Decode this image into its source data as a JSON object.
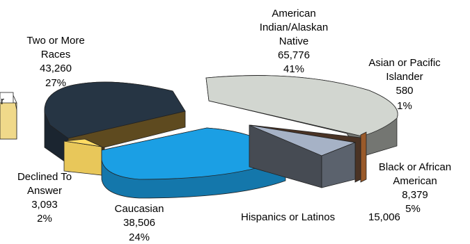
{
  "chart_data": {
    "type": "pie",
    "style": "3d-exploded",
    "slices": [
      {
        "label_lines": [
          "American",
          "Indian/Alaskan",
          "Native"
        ],
        "value": 65776,
        "value_text": "65,776",
        "percent_text": "41%",
        "color": "#d2d6d0"
      },
      {
        "label_lines": [
          "Asian or Pacific",
          "Islander"
        ],
        "value": 580,
        "value_text": "580",
        "percent_text": "1%",
        "color": "#9a5a2a"
      },
      {
        "label_lines": [
          "Black or African",
          "American"
        ],
        "value": 8379,
        "value_text": "8,379",
        "percent_text": "5%",
        "color": "#4a3325"
      },
      {
        "label_lines": [
          "Hispanics or Latinos"
        ],
        "value": 15006,
        "value_text": "15,006",
        "percent_text": "",
        "color": "#a6b2c6"
      },
      {
        "label_lines": [
          "Caucasian"
        ],
        "value": 38506,
        "value_text": "38,506",
        "percent_text": "24%",
        "color": "#1b9fe4"
      },
      {
        "label_lines": [
          "Declined To",
          "Answer"
        ],
        "value": 3093,
        "value_text": "3,093",
        "percent_text": "2%",
        "color": "#e8c75a"
      },
      {
        "label_lines": [
          "Two or More",
          "Races"
        ],
        "value": 43260,
        "value_text": "43,260",
        "percent_text": "27%",
        "color": "#263544"
      }
    ],
    "extra_slices": [
      {
        "color": "#f0d98a",
        "partial_text": "r"
      }
    ]
  }
}
